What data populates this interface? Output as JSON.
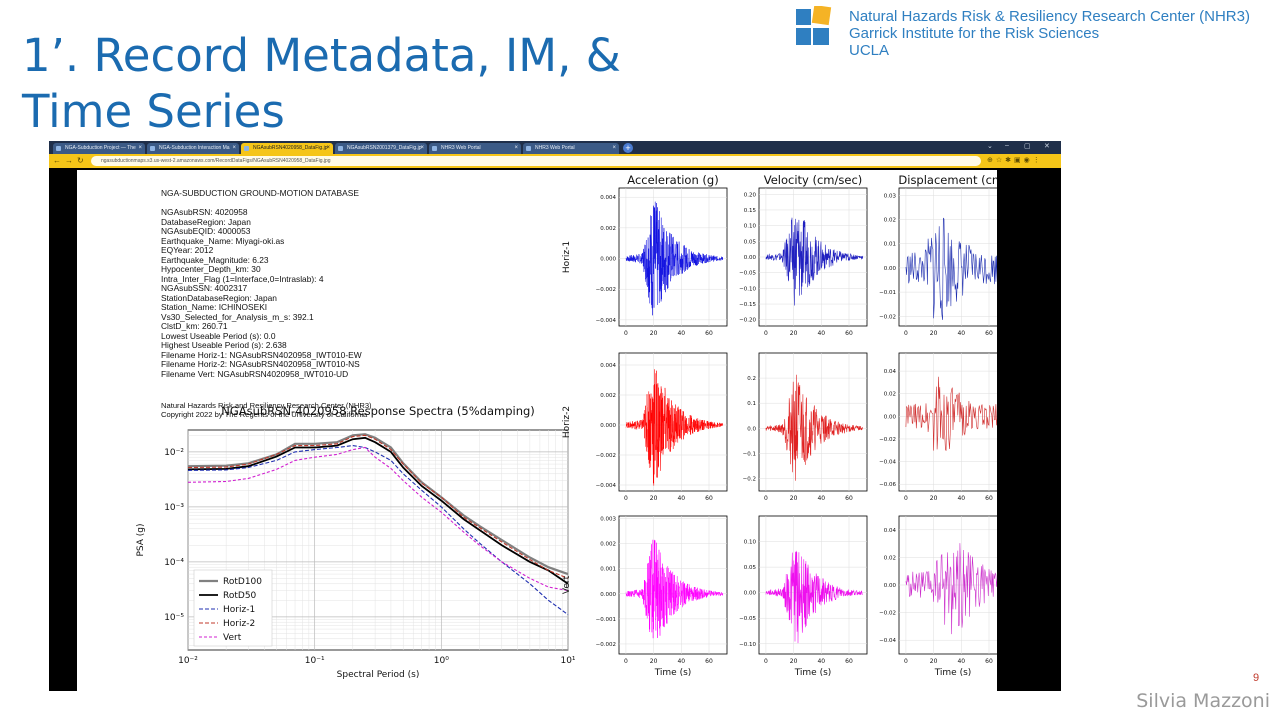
{
  "slide": {
    "title": "1’. Record Metadata, IM, & Time Series",
    "org_lines": [
      "Natural Hazards Risk & Resiliency Research Center (NHR3)",
      "Garrick Institute  for the Risk Sciences",
      "UCLA"
    ],
    "page_number": "9",
    "author": "Silvia Mazzoni",
    "logo_colors": [
      "#2f7fc1",
      "#f5b325",
      "#2f7fc1",
      "#2f7fc1"
    ]
  },
  "browser": {
    "tabs": [
      {
        "label": "NGA-Subduction Project — The",
        "active": false
      },
      {
        "label": "NGA-Subduction Interaction Ma",
        "active": false
      },
      {
        "label": "NGAsubRSN4020958_DataFig.jp",
        "active": true
      },
      {
        "label": "NGAsubRSN2001379_DataFig.jp",
        "active": false
      },
      {
        "label": "NHR3 Web Portal",
        "active": false
      },
      {
        "label": "NHR3 Web Portal",
        "active": false
      }
    ],
    "url": "ngasubductionmaps.s3.us-west-2.amazonaws.com/RecordDataFigs/NGAsubRSN4020958_DataFig.jpg",
    "window_controls": [
      "⌄",
      "–",
      "▢",
      "✕"
    ]
  },
  "metadata": {
    "title": "NGA-SUBDUCTION GROUND-MOTION DATABASE",
    "fields": [
      "NGAsubRSN: 4020958",
      "DatabaseRegion: Japan",
      "NGAsubEQID: 4000053",
      "Earthquake_Name: Miyagi-oki.as",
      "EQYear: 2012",
      "Earthquake_Magnitude: 6.23",
      "Hypocenter_Depth_km: 30",
      "Intra_Inter_Flag (1=Interface,0=Intraslab): 4",
      "NGAsubSSN: 4002317",
      "StationDatabaseRegion: Japan",
      "Station_Name: ICHINOSEKI",
      "Vs30_Selected_for_Analysis_m_s: 392.1",
      "ClstD_km: 260.71",
      "Lowest Useable Period (s): 0.0",
      "Highest Useable Period (s): 2.638",
      "Filename Horiz-1: NGAsubRSN4020958_IWT010-EW",
      "Filename Horiz-2: NGAsubRSN4020958_IWT010-NS",
      "Filename Vert: NGAsubRSN4020958_IWT010-UD"
    ],
    "credit_lines": [
      "Natural Hazards Risk and Resiliency Research Center (NHR3)",
      "Copyright 2022 by The Regents of the University of California"
    ]
  },
  "chart_data": [
    {
      "type": "line",
      "title": "NGAsubRSN-4020958 Response Spectra (5%damping)",
      "xlabel": "Spectral Period (s)",
      "ylabel": "PSA (g)",
      "xscale": "log",
      "yscale": "log",
      "xlim": [
        0.01,
        10
      ],
      "ylim": [
        2.5e-06,
        0.025
      ],
      "xticks": [
        0.01,
        0.1,
        1,
        10
      ],
      "xtick_labels": [
        "10⁻²",
        "10⁻¹",
        "10⁰",
        "10¹"
      ],
      "yticks": [
        1e-05,
        0.0001,
        0.001,
        0.01
      ],
      "ytick_labels": [
        "10⁻⁵",
        "10⁻⁴",
        "10⁻³",
        "10⁻²"
      ],
      "grid": true,
      "legend": "lower-left",
      "x": [
        0.01,
        0.02,
        0.03,
        0.05,
        0.07,
        0.1,
        0.15,
        0.2,
        0.25,
        0.3,
        0.4,
        0.5,
        0.7,
        1,
        1.5,
        2,
        3,
        5,
        7,
        10
      ],
      "series": [
        {
          "name": "RotD100",
          "color": "#808080",
          "values": [
            0.0055,
            0.0056,
            0.0062,
            0.009,
            0.014,
            0.014,
            0.015,
            0.02,
            0.021,
            0.018,
            0.012,
            0.0062,
            0.0028,
            0.0015,
            0.0007,
            0.00045,
            0.00025,
            0.00012,
            8e-05,
            6e-05
          ]
        },
        {
          "name": "RotD50",
          "color": "#000000",
          "values": [
            0.0048,
            0.0049,
            0.0055,
            0.0082,
            0.012,
            0.012,
            0.013,
            0.017,
            0.018,
            0.015,
            0.01,
            0.0052,
            0.0024,
            0.0013,
            0.0006,
            0.00038,
            0.0002,
            0.0001,
            7e-05,
            4e-05
          ]
        },
        {
          "name": "Horiz-1",
          "color": "#1f2fb0",
          "values": [
            0.0046,
            0.0047,
            0.0052,
            0.007,
            0.01,
            0.011,
            0.012,
            0.013,
            0.012,
            0.01,
            0.007,
            0.004,
            0.002,
            0.001,
            0.0004,
            0.00022,
            0.0001,
            4e-05,
            2e-05,
            1.1e-05
          ]
        },
        {
          "name": "Horiz-2",
          "color": "#c0392b",
          "values": [
            0.0052,
            0.0053,
            0.006,
            0.009,
            0.013,
            0.013,
            0.014,
            0.019,
            0.02,
            0.017,
            0.011,
            0.006,
            0.0027,
            0.0015,
            0.00065,
            0.00042,
            0.00023,
            0.00011,
            7e-05,
            5e-05
          ]
        },
        {
          "name": "Vert",
          "color": "#d020d0",
          "values": [
            0.0028,
            0.0029,
            0.0033,
            0.0048,
            0.007,
            0.008,
            0.009,
            0.011,
            0.012,
            0.008,
            0.005,
            0.003,
            0.0015,
            0.0008,
            0.00035,
            0.0002,
            0.0001,
            5e-05,
            3.5e-05,
            3e-05
          ]
        }
      ]
    },
    {
      "type": "line",
      "title": "",
      "column_titles": [
        "Acceleration (g)",
        "Velocity (cm/sec)",
        "Displacement (cm)"
      ],
      "row_labels": [
        "Horiz-1",
        "Horiz-2",
        "Vert"
      ],
      "xlabel": "Time (s)",
      "xlim": [
        -5,
        73
      ],
      "xticks": [
        0,
        20,
        40,
        60
      ],
      "grid": true,
      "panels": [
        {
          "row": 0,
          "col": 0,
          "color": "#1010e0",
          "ylim": [
            -0.0044,
            0.0046
          ],
          "yticks": [
            -0.004,
            -0.002,
            0.0,
            0.002,
            0.004
          ],
          "ytick_labels": [
            "−0.004",
            "−0.002",
            "0.000",
            "0.002",
            "0.004"
          ],
          "peak": 0.0043,
          "t_peak": 20
        },
        {
          "row": 0,
          "col": 1,
          "color": "#2020c0",
          "ylim": [
            -0.22,
            0.22
          ],
          "yticks": [
            -0.2,
            -0.15,
            -0.1,
            -0.05,
            0.0,
            0.05,
            0.1,
            0.15,
            0.2
          ],
          "ytick_labels": [
            "−0.20",
            "−0.15",
            "−0.10",
            "−0.05",
            "0.00",
            "0.05",
            "0.10",
            "0.15",
            "0.20"
          ],
          "peak": 0.18,
          "t_peak": 22
        },
        {
          "row": 0,
          "col": 2,
          "color": "#2030b0",
          "ylim": [
            -0.024,
            0.033
          ],
          "yticks": [
            -0.02,
            -0.01,
            0.0,
            0.01,
            0.02,
            0.03
          ],
          "ytick_labels": [
            "−0.02",
            "−0.01",
            "0.00",
            "0.01",
            "0.02",
            "0.03"
          ],
          "peak": 0.028,
          "t_peak": 22
        },
        {
          "row": 1,
          "col": 0,
          "color": "#ff0000",
          "ylim": [
            -0.0044,
            0.0048
          ],
          "yticks": [
            -0.004,
            -0.002,
            0.0,
            0.002,
            0.004
          ],
          "ytick_labels": [
            "−0.004",
            "−0.002",
            "0.000",
            "0.002",
            "0.004"
          ],
          "peak": 0.0045,
          "t_peak": 20
        },
        {
          "row": 1,
          "col": 1,
          "color": "#e02020",
          "ylim": [
            -0.25,
            0.3
          ],
          "yticks": [
            -0.2,
            -0.1,
            0.0,
            0.1,
            0.2
          ],
          "ytick_labels": [
            "−0.2",
            "−0.1",
            "0.0",
            "0.1",
            "0.2"
          ],
          "peak": 0.24,
          "t_peak": 22
        },
        {
          "row": 1,
          "col": 2,
          "color": "#d03030",
          "ylim": [
            -0.066,
            0.056
          ],
          "yticks": [
            -0.06,
            -0.04,
            -0.02,
            0.0,
            0.02,
            0.04
          ],
          "ytick_labels": [
            "−0.06",
            "−0.04",
            "−0.02",
            "0.00",
            "0.02",
            "0.04"
          ],
          "peak": 0.045,
          "t_peak": 22
        },
        {
          "row": 2,
          "col": 0,
          "color": "#ff00ff",
          "ylim": [
            -0.0024,
            0.0031
          ],
          "yticks": [
            -0.002,
            -0.001,
            0.0,
            0.001,
            0.002,
            0.003
          ],
          "ytick_labels": [
            "−0.002",
            "−0.001",
            "0.000",
            "0.001",
            "0.002",
            "0.003"
          ],
          "peak": 0.0024,
          "t_peak": 20
        },
        {
          "row": 2,
          "col": 1,
          "color": "#ee10ee",
          "ylim": [
            -0.12,
            0.15
          ],
          "yticks": [
            -0.1,
            -0.05,
            0.0,
            0.05,
            0.1
          ],
          "ytick_labels": [
            "−0.10",
            "−0.05",
            "0.00",
            "0.05",
            "0.10"
          ],
          "peak": 0.11,
          "t_peak": 22
        },
        {
          "row": 2,
          "col": 2,
          "color": "#cc30cc",
          "ylim": [
            -0.05,
            0.05
          ],
          "yticks": [
            -0.04,
            -0.02,
            0.0,
            0.02,
            0.04
          ],
          "ytick_labels": [
            "−0.04",
            "−0.02",
            "0.00",
            "0.02",
            "0.04"
          ],
          "peak": 0.04,
          "t_peak": 35
        }
      ]
    }
  ]
}
